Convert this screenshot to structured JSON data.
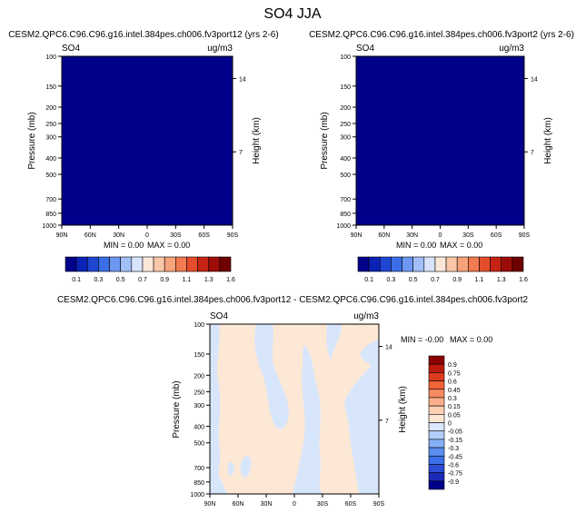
{
  "figure_title": "SO4 JJA",
  "colors": {
    "upper_scale": [
      "#00008b",
      "#0a22b5",
      "#1e46d2",
      "#3a6ee6",
      "#6d97f0",
      "#a2bff7",
      "#d7e4fb",
      "#fbe7d8",
      "#f9c7a8",
      "#f6a27a",
      "#f17a52",
      "#e34d2b",
      "#c52415",
      "#9d0d08",
      "#6e0000"
    ],
    "diff_scale": [
      "#00008b",
      "#1b2bb8",
      "#2c4ed6",
      "#3c6ee7",
      "#5a8ef0",
      "#86aff5",
      "#b3cdf9",
      "#dbe7fc",
      "#fde6d3",
      "#fcd0b3",
      "#f9b08a",
      "#f68b61",
      "#ef6338",
      "#dd3b1c",
      "#bd1a0d",
      "#8b0000"
    ],
    "zero_blue": "#d8e6fb",
    "zero_peach": "#fde8d6"
  },
  "chart_data": [
    {
      "type": "heatmap",
      "title": "CESM2.QPC6.C96.C96.g16.intel.384pes.ch006.fv3port12 (yrs 2-6)",
      "variable_label": "SO4",
      "units_label": "ug/m3",
      "ylabel": "Pressure (mb)",
      "right_label": "Height (km)",
      "y_scale": "log",
      "ylim": [
        1000,
        100
      ],
      "xlim": [
        90,
        -90
      ],
      "x_ticks": [
        "90N",
        "60N",
        "30N",
        "0",
        "30S",
        "60S",
        "90S"
      ],
      "x_tick_values": [
        90,
        60,
        30,
        0,
        -30,
        -60,
        -90
      ],
      "y_ticks": [
        "100",
        "150",
        "200",
        "250",
        "300",
        "400",
        "500",
        "700",
        "850",
        "1000"
      ],
      "y_tick_values": [
        100,
        150,
        200,
        250,
        300,
        400,
        500,
        700,
        850,
        1000
      ],
      "right_ticks": [
        "14",
        "7"
      ],
      "right_tick_values": [
        14,
        7
      ],
      "min_label": "MIN =   0.00",
      "max_label": "MAX =   0.00",
      "min": 0.0,
      "max": 0.0,
      "field_value": 0.0,
      "colorbar_labels": [
        "0.1",
        "0.3",
        "0.5",
        "0.7",
        "0.9",
        "1.1",
        "1.3",
        "1.6"
      ],
      "colorbar_orientation": "horizontal"
    },
    {
      "type": "heatmap",
      "title": "CESM2.QPC6.C96.C96.g16.intel.384pes.ch006.fv3port2 (yrs 2-6)",
      "variable_label": "SO4",
      "units_label": "ug/m3",
      "ylabel": "Pressure (mb)",
      "right_label": "Height (km)",
      "y_scale": "log",
      "ylim": [
        1000,
        100
      ],
      "xlim": [
        90,
        -90
      ],
      "x_ticks": [
        "90N",
        "60N",
        "30N",
        "0",
        "30S",
        "60S",
        "90S"
      ],
      "x_tick_values": [
        90,
        60,
        30,
        0,
        -30,
        -60,
        -90
      ],
      "y_ticks": [
        "100",
        "150",
        "200",
        "250",
        "300",
        "400",
        "500",
        "700",
        "850",
        "1000"
      ],
      "y_tick_values": [
        100,
        150,
        200,
        250,
        300,
        400,
        500,
        700,
        850,
        1000
      ],
      "right_ticks": [
        "14",
        "7"
      ],
      "right_tick_values": [
        14,
        7
      ],
      "min_label": "MIN =   0.00",
      "max_label": "MAX =   0.00",
      "min": 0.0,
      "max": 0.0,
      "field_value": 0.0,
      "colorbar_labels": [
        "0.1",
        "0.3",
        "0.5",
        "0.7",
        "0.9",
        "1.1",
        "1.3",
        "1.6"
      ],
      "colorbar_orientation": "horizontal"
    },
    {
      "type": "heatmap",
      "title": "CESM2.QPC6.C96.C96.g16.intel.384pes.ch006.fv3port12 - CESM2.QPC6.C96.C96.g16.intel.384pes.ch006.fv3port2",
      "variable_label": "SO4",
      "units_label": "ug/m3",
      "ylabel": "Pressure (mb)",
      "right_label": "Height (km)",
      "y_scale": "log",
      "ylim": [
        1000,
        100
      ],
      "xlim": [
        90,
        -90
      ],
      "x_ticks": [
        "90N",
        "60N",
        "30N",
        "0",
        "30S",
        "60S",
        "90S"
      ],
      "x_tick_values": [
        90,
        60,
        30,
        0,
        -30,
        -60,
        -90
      ],
      "y_ticks": [
        "100",
        "150",
        "200",
        "250",
        "300",
        "400",
        "500",
        "700",
        "850",
        "1000"
      ],
      "y_tick_values": [
        100,
        150,
        200,
        250,
        300,
        400,
        500,
        700,
        850,
        1000
      ],
      "right_ticks": [
        "14",
        "7"
      ],
      "right_tick_values": [
        14,
        7
      ],
      "min_label": "MIN = -0.00",
      "max_label": "MAX =   0.00",
      "min": -0.0,
      "max": 0.0,
      "colorbar_labels": [
        "0.9",
        "0.75",
        "0.6",
        "0.45",
        "0.3",
        "0.15",
        "0.05",
        "0",
        "-0.05",
        "-0.15",
        "-0.3",
        "-0.45",
        "-0.6",
        "-0.75",
        "-0.9"
      ],
      "colorbar_orientation": "vertical",
      "field_bands": [
        {
          "value": "negative",
          "color": "zero_blue"
        },
        {
          "value": "positive",
          "color": "zero_peach"
        }
      ]
    }
  ]
}
